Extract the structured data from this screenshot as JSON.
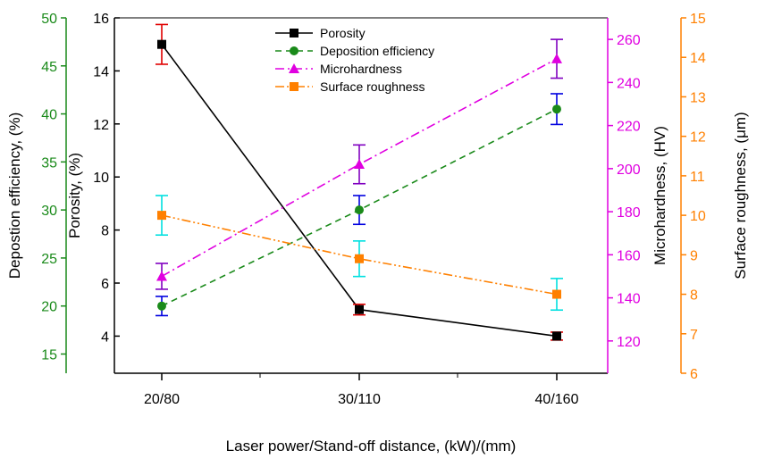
{
  "chart_data": {
    "type": "line",
    "categories": [
      "20/80",
      "30/110",
      "40/160"
    ],
    "xlabel": "Laser power/Stand-off distance, (kW)/(mm)",
    "axes": {
      "deposition": {
        "label": "Depostion efficiency, (%)",
        "ylim": [
          13,
          50
        ],
        "ticks": [
          15,
          20,
          25,
          30,
          35,
          40,
          45,
          50
        ],
        "color": "#1a8a1a"
      },
      "porosity": {
        "label": "Porosity, (%)",
        "ylim": [
          2.6,
          16
        ],
        "ticks": [
          4,
          6,
          8,
          10,
          12,
          14,
          16
        ],
        "color": "#000000"
      },
      "microhardness": {
        "label": "Microhardness, (HV)",
        "ylim": [
          105,
          270
        ],
        "ticks": [
          120,
          140,
          160,
          180,
          200,
          220,
          240,
          260
        ],
        "color": "#e000e0"
      },
      "roughness": {
        "label": "Surface roughness, (μm)",
        "ylim": [
          6,
          15
        ],
        "ticks": [
          6,
          7,
          8,
          9,
          10,
          11,
          12,
          13,
          14,
          15
        ],
        "color": "#ff8000"
      }
    },
    "series": [
      {
        "name": "Porosity",
        "axis": "porosity",
        "values": [
          15.0,
          5.0,
          4.0
        ],
        "errors": [
          0.75,
          0.2,
          0.15
        ],
        "color": "#000000",
        "errorColor": "#e00000",
        "marker": "square",
        "dash": ""
      },
      {
        "name": "Deposition efficiency",
        "axis": "deposition",
        "values": [
          20.0,
          30.0,
          40.5
        ],
        "errors": [
          1.0,
          1.5,
          1.6
        ],
        "color": "#1a8a1a",
        "errorColor": "#0000e0",
        "marker": "circle",
        "dash": "7,5"
      },
      {
        "name": "Microhardness",
        "axis": "microhardness",
        "values": [
          150,
          202,
          251
        ],
        "errors": [
          6,
          9,
          9
        ],
        "color": "#e000e0",
        "errorColor": "#8000c0",
        "marker": "triangle",
        "dash": "10,4,2,4"
      },
      {
        "name": "Surface roughness",
        "axis": "roughness",
        "values": [
          10.0,
          8.9,
          8.0
        ],
        "errors": [
          0.5,
          0.45,
          0.4
        ],
        "color": "#ff8000",
        "errorColor": "#00e0e0",
        "marker": "square",
        "dash": "10,3,2,3,2,3"
      }
    ]
  }
}
